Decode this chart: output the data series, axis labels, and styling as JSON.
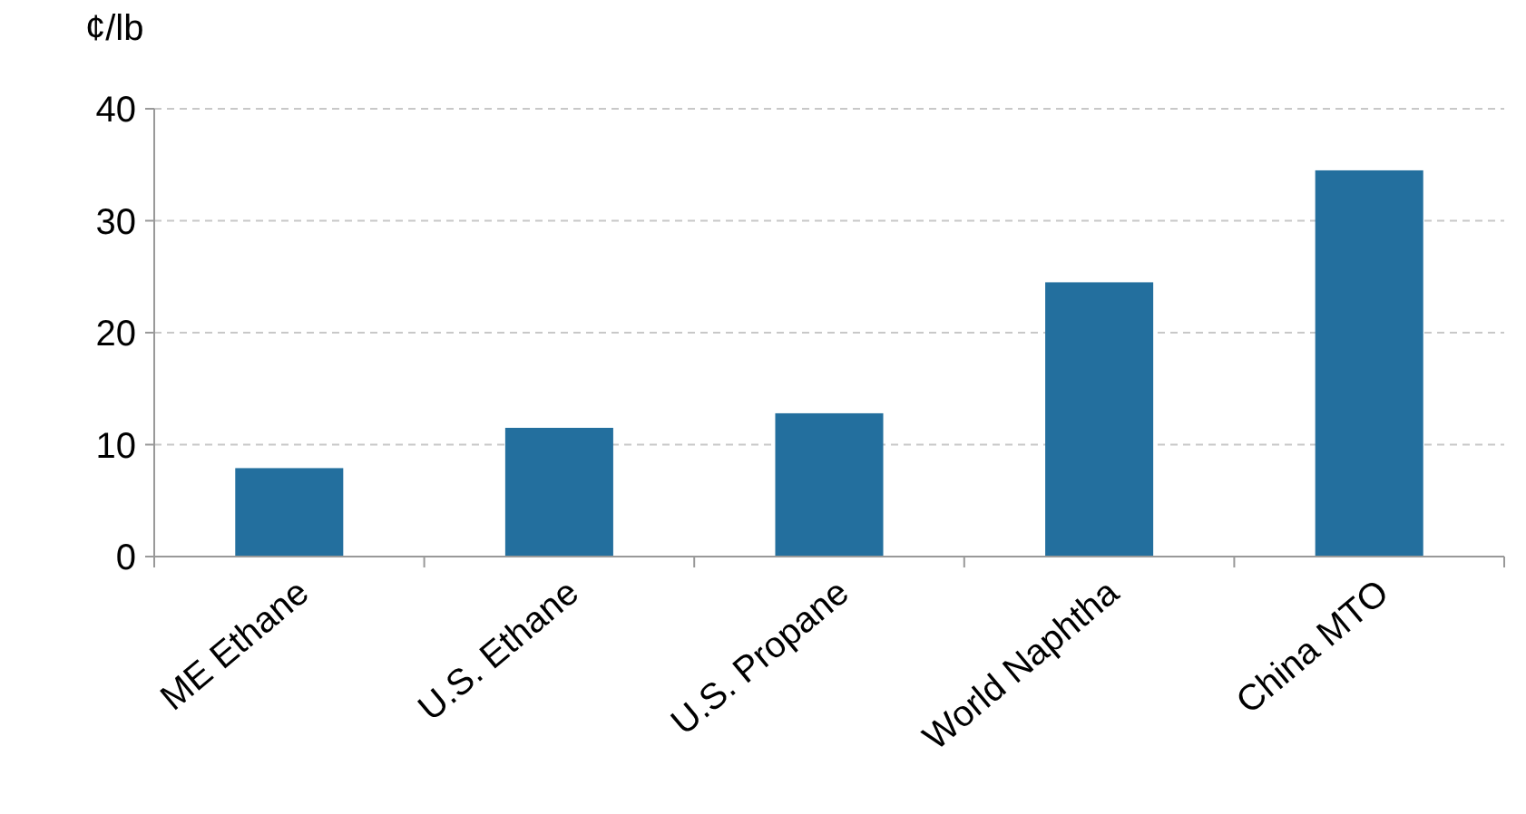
{
  "chart_data": {
    "type": "bar",
    "ylabel": "¢/lb",
    "categories": [
      "ME Ethane",
      "U.S. Ethane",
      "U.S. Propane",
      "World Naphtha",
      "China MTO"
    ],
    "values": [
      7.9,
      11.5,
      12.8,
      24.5,
      34.5
    ],
    "color": "#236f9e",
    "ylim": [
      0,
      40
    ],
    "yticks": [
      0,
      10,
      20,
      30,
      40
    ],
    "grid": "y"
  }
}
